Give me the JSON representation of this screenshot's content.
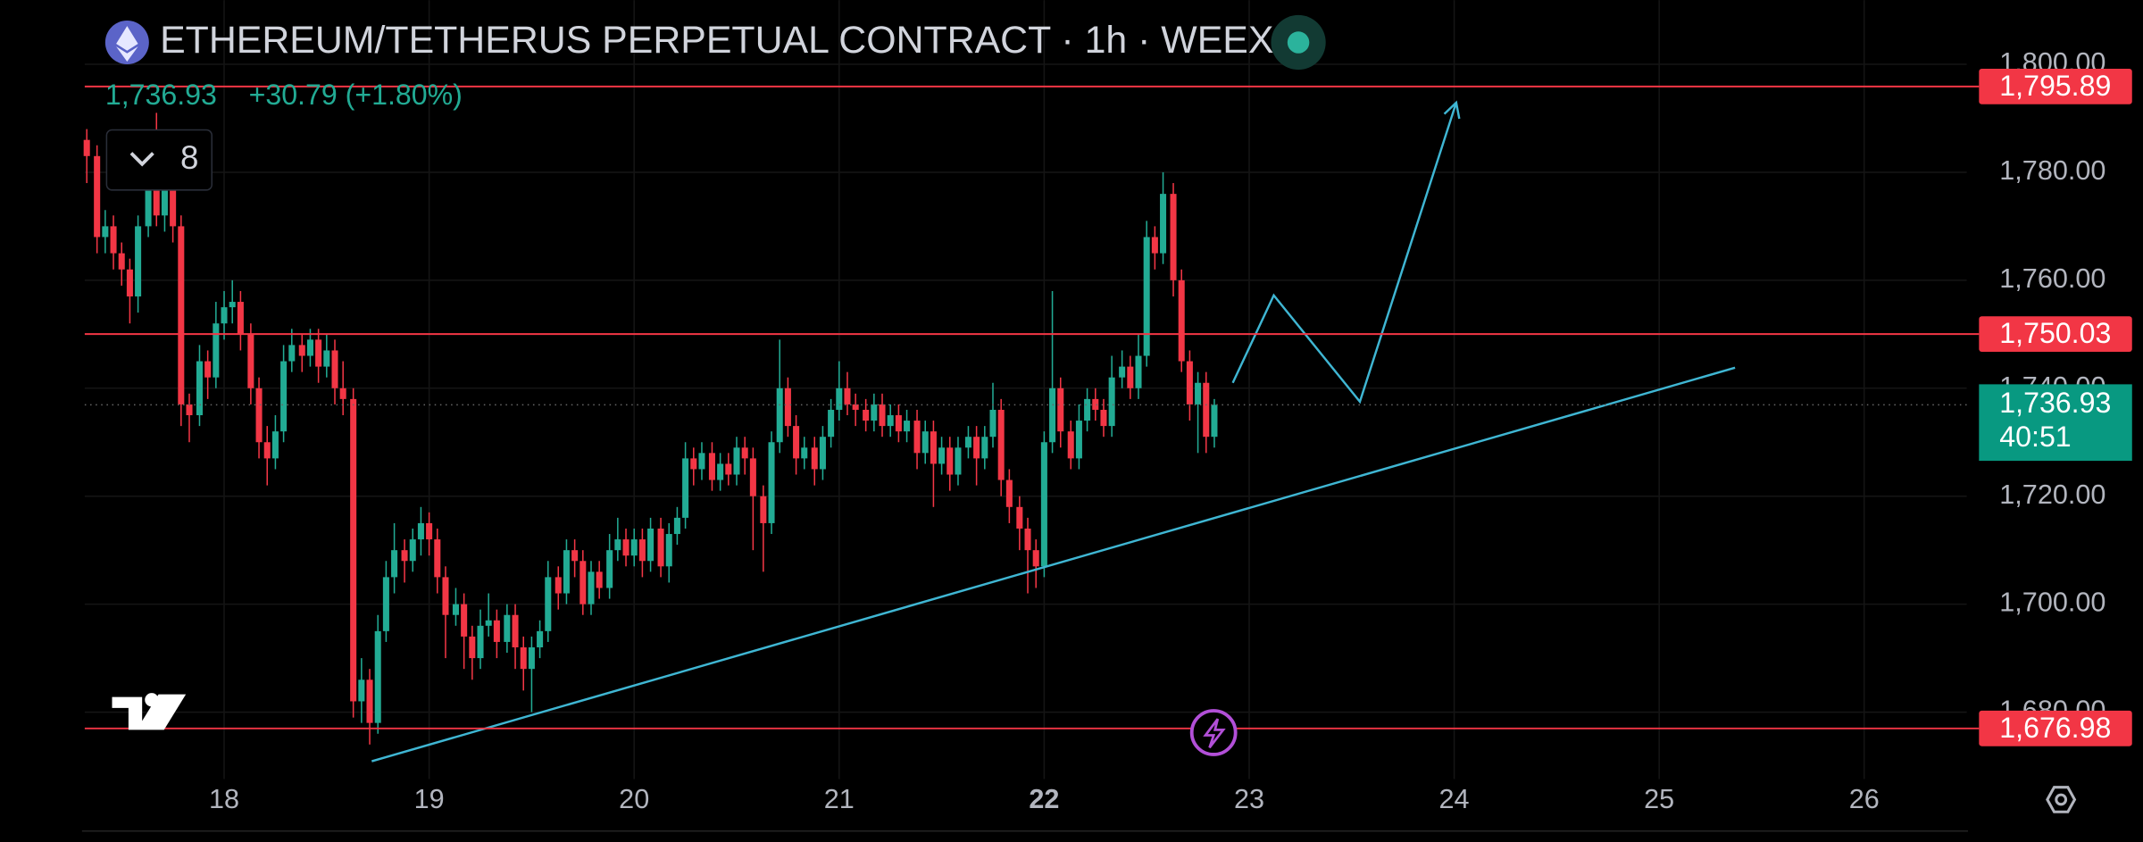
{
  "chart_data": {
    "type": "candlestick",
    "title": "ETHEREUM/TETHERUS PERPETUAL CONTRACT · 1h · WEEX",
    "price_text": "1,736.93",
    "change_text": "+30.79 (+1.80%)",
    "interval_menu": "8",
    "up_color": "#22ab94",
    "down_color": "#f23645",
    "grid": true,
    "xlim": [
      17.32,
      26.5
    ],
    "ylim": [
      1667.6,
      1811.9
    ],
    "xticks": [
      18,
      19,
      20,
      21,
      22,
      23,
      24,
      25,
      26
    ],
    "xtick_bold": 22,
    "yticks": [
      {
        "value": 1680,
        "label": "1,680.00"
      },
      {
        "value": 1700,
        "label": "1,700.00"
      },
      {
        "value": 1720,
        "label": "1,720.00"
      },
      {
        "value": 1740,
        "label": "1,740.00"
      },
      {
        "value": 1760,
        "label": "1,760.00"
      },
      {
        "value": 1780,
        "label": "1,780.00"
      },
      {
        "value": 1800,
        "label": "1,800.00"
      }
    ],
    "price_lines": [
      {
        "value": 1795.89,
        "label": "1,795.89",
        "color": "#f23645"
      },
      {
        "value": 1750.03,
        "label": "1,750.03",
        "color": "#f23645"
      },
      {
        "value": 1676.98,
        "label": "1,676.98",
        "color": "#f23645"
      }
    ],
    "current_price": {
      "value": 1736.93,
      "label": "1,736.93",
      "countdown": "40:51",
      "color": "#089981"
    },
    "drawings": [
      {
        "color": "#3fb6d3",
        "x": [
          18.72,
          25.37
        ],
        "y": [
          1670.9,
          1743.8
        ],
        "arrow": false
      },
      {
        "color": "#3fb6d3",
        "x": [
          22.92,
          23.12,
          23.54,
          24.01
        ],
        "y": [
          1741,
          1757.2,
          1737.5,
          1792.9
        ],
        "arrow": true
      }
    ],
    "candles": [
      [
        17.33,
        1786,
        1788,
        1778,
        1783
      ],
      [
        17.38,
        1783,
        1785,
        1765,
        1768
      ],
      [
        17.42,
        1768,
        1773,
        1765,
        1770
      ],
      [
        17.46,
        1770,
        1772,
        1762,
        1765
      ],
      [
        17.5,
        1765,
        1767,
        1759,
        1762
      ],
      [
        17.54,
        1762,
        1764,
        1752,
        1757
      ],
      [
        17.58,
        1757,
        1772,
        1754,
        1770
      ],
      [
        17.63,
        1770,
        1781,
        1768,
        1778
      ],
      [
        17.67,
        1778,
        1791,
        1770,
        1772
      ],
      [
        17.71,
        1772,
        1785,
        1769,
        1783
      ],
      [
        17.75,
        1783,
        1786,
        1767,
        1770
      ],
      [
        17.79,
        1770,
        1772,
        1733,
        1737
      ],
      [
        17.83,
        1737,
        1739,
        1730,
        1735
      ],
      [
        17.88,
        1735,
        1748,
        1733,
        1745
      ],
      [
        17.92,
        1745,
        1747,
        1738,
        1742
      ],
      [
        17.96,
        1742,
        1756,
        1740,
        1752
      ],
      [
        18.0,
        1752,
        1758,
        1749,
        1755
      ],
      [
        18.04,
        1755,
        1760,
        1752,
        1756
      ],
      [
        18.08,
        1756,
        1758,
        1747,
        1750
      ],
      [
        18.13,
        1750,
        1752,
        1737,
        1740
      ],
      [
        18.17,
        1740,
        1742,
        1727,
        1730
      ],
      [
        18.21,
        1730,
        1733,
        1722,
        1727
      ],
      [
        18.25,
        1727,
        1735,
        1725,
        1732
      ],
      [
        18.29,
        1732,
        1748,
        1730,
        1745
      ],
      [
        18.33,
        1745,
        1751,
        1743,
        1748
      ],
      [
        18.38,
        1748,
        1750,
        1743,
        1746
      ],
      [
        18.42,
        1746,
        1751,
        1744,
        1749
      ],
      [
        18.46,
        1749,
        1751,
        1741,
        1744
      ],
      [
        18.5,
        1744,
        1750,
        1742,
        1747
      ],
      [
        18.54,
        1747,
        1749,
        1737,
        1740
      ],
      [
        18.58,
        1740,
        1745,
        1735,
        1738
      ],
      [
        18.63,
        1738,
        1740,
        1679,
        1682
      ],
      [
        18.67,
        1682,
        1690,
        1678,
        1686
      ],
      [
        18.71,
        1686,
        1688,
        1674,
        1678
      ],
      [
        18.75,
        1678,
        1698,
        1676,
        1695
      ],
      [
        18.79,
        1695,
        1708,
        1693,
        1705
      ],
      [
        18.83,
        1705,
        1715,
        1702,
        1710
      ],
      [
        18.88,
        1710,
        1712,
        1704,
        1708
      ],
      [
        18.92,
        1708,
        1714,
        1706,
        1712
      ],
      [
        18.96,
        1712,
        1718,
        1709,
        1715
      ],
      [
        19.0,
        1715,
        1717,
        1709,
        1712
      ],
      [
        19.04,
        1712,
        1714,
        1702,
        1705
      ],
      [
        19.08,
        1705,
        1707,
        1690,
        1698
      ],
      [
        19.13,
        1698,
        1703,
        1696,
        1700
      ],
      [
        19.17,
        1700,
        1702,
        1688,
        1694
      ],
      [
        19.21,
        1694,
        1696,
        1686,
        1690
      ],
      [
        19.25,
        1690,
        1699,
        1688,
        1696
      ],
      [
        19.29,
        1696,
        1702,
        1694,
        1697
      ],
      [
        19.33,
        1697,
        1699,
        1690,
        1693
      ],
      [
        19.38,
        1693,
        1700,
        1691,
        1698
      ],
      [
        19.42,
        1698,
        1700,
        1688,
        1692
      ],
      [
        19.46,
        1692,
        1694,
        1684,
        1688
      ],
      [
        19.5,
        1688,
        1694,
        1680,
        1692
      ],
      [
        19.54,
        1692,
        1697,
        1690,
        1695
      ],
      [
        19.58,
        1695,
        1708,
        1693,
        1705
      ],
      [
        19.63,
        1705,
        1707,
        1699,
        1702
      ],
      [
        19.67,
        1702,
        1712,
        1700,
        1710
      ],
      [
        19.71,
        1710,
        1712,
        1705,
        1708
      ],
      [
        19.75,
        1708,
        1710,
        1698,
        1700
      ],
      [
        19.79,
        1700,
        1708,
        1698,
        1706
      ],
      [
        19.83,
        1706,
        1708,
        1701,
        1703
      ],
      [
        19.88,
        1703,
        1713,
        1701,
        1710
      ],
      [
        19.92,
        1710,
        1716,
        1708,
        1712
      ],
      [
        19.96,
        1712,
        1714,
        1707,
        1709
      ],
      [
        20.0,
        1709,
        1714,
        1707,
        1712
      ],
      [
        20.04,
        1712,
        1714,
        1705,
        1708
      ],
      [
        20.08,
        1708,
        1716,
        1706,
        1714
      ],
      [
        20.13,
        1714,
        1716,
        1705,
        1707
      ],
      [
        20.17,
        1707,
        1715,
        1704,
        1713
      ],
      [
        20.21,
        1713,
        1718,
        1711,
        1716
      ],
      [
        20.25,
        1716,
        1730,
        1714,
        1727
      ],
      [
        20.29,
        1727,
        1729,
        1722,
        1725
      ],
      [
        20.33,
        1725,
        1730,
        1723,
        1728
      ],
      [
        20.38,
        1728,
        1730,
        1721,
        1723
      ],
      [
        20.42,
        1723,
        1728,
        1721,
        1726
      ],
      [
        20.46,
        1726,
        1728,
        1722,
        1724
      ],
      [
        20.5,
        1724,
        1731,
        1722,
        1729
      ],
      [
        20.54,
        1729,
        1731,
        1724,
        1727
      ],
      [
        20.58,
        1727,
        1729,
        1710,
        1720
      ],
      [
        20.63,
        1720,
        1722,
        1706,
        1715
      ],
      [
        20.67,
        1715,
        1732,
        1713,
        1730
      ],
      [
        20.71,
        1730,
        1749,
        1728,
        1740
      ],
      [
        20.75,
        1740,
        1742,
        1731,
        1733
      ],
      [
        20.79,
        1733,
        1735,
        1724,
        1727
      ],
      [
        20.83,
        1727,
        1731,
        1725,
        1729
      ],
      [
        20.88,
        1729,
        1731,
        1722,
        1725
      ],
      [
        20.92,
        1725,
        1733,
        1723,
        1731
      ],
      [
        20.96,
        1731,
        1738,
        1729,
        1736
      ],
      [
        21.0,
        1736,
        1745,
        1734,
        1740
      ],
      [
        21.04,
        1740,
        1743,
        1735,
        1737
      ],
      [
        21.08,
        1737,
        1739,
        1733,
        1736
      ],
      [
        21.13,
        1736,
        1738,
        1732,
        1734
      ],
      [
        21.17,
        1734,
        1739,
        1732,
        1737
      ],
      [
        21.21,
        1737,
        1739,
        1731,
        1733
      ],
      [
        21.25,
        1733,
        1737,
        1731,
        1735
      ],
      [
        21.29,
        1735,
        1737,
        1730,
        1732
      ],
      [
        21.33,
        1732,
        1736,
        1730,
        1734
      ],
      [
        21.38,
        1734,
        1736,
        1725,
        1728
      ],
      [
        21.42,
        1728,
        1734,
        1726,
        1732
      ],
      [
        21.46,
        1732,
        1734,
        1718,
        1726
      ],
      [
        21.5,
        1726,
        1731,
        1724,
        1729
      ],
      [
        21.54,
        1729,
        1731,
        1721,
        1724
      ],
      [
        21.58,
        1724,
        1731,
        1722,
        1729
      ],
      [
        21.63,
        1729,
        1733,
        1727,
        1731
      ],
      [
        21.67,
        1731,
        1733,
        1722,
        1727
      ],
      [
        21.71,
        1727,
        1733,
        1725,
        1731
      ],
      [
        21.75,
        1731,
        1741,
        1729,
        1736
      ],
      [
        21.79,
        1736,
        1738,
        1720,
        1723
      ],
      [
        21.83,
        1723,
        1725,
        1715,
        1718
      ],
      [
        21.88,
        1718,
        1720,
        1710,
        1714
      ],
      [
        21.92,
        1714,
        1716,
        1702,
        1710
      ],
      [
        21.96,
        1710,
        1712,
        1703,
        1707
      ],
      [
        22.0,
        1707,
        1732,
        1705,
        1730
      ],
      [
        22.04,
        1730,
        1758,
        1728,
        1740
      ],
      [
        22.08,
        1740,
        1742,
        1729,
        1732
      ],
      [
        22.13,
        1732,
        1734,
        1725,
        1727
      ],
      [
        22.17,
        1727,
        1737,
        1725,
        1734
      ],
      [
        22.21,
        1734,
        1740,
        1732,
        1738
      ],
      [
        22.25,
        1738,
        1740,
        1734,
        1736
      ],
      [
        22.29,
        1736,
        1738,
        1731,
        1733
      ],
      [
        22.33,
        1733,
        1746,
        1731,
        1742
      ],
      [
        22.38,
        1742,
        1747,
        1740,
        1744
      ],
      [
        22.42,
        1744,
        1746,
        1738,
        1740
      ],
      [
        22.46,
        1740,
        1750,
        1738,
        1746
      ],
      [
        22.5,
        1746,
        1771,
        1744,
        1768
      ],
      [
        22.54,
        1768,
        1770,
        1762,
        1765
      ],
      [
        22.58,
        1765,
        1780,
        1763,
        1776
      ],
      [
        22.63,
        1776,
        1778,
        1757,
        1760
      ],
      [
        22.67,
        1760,
        1762,
        1743,
        1745
      ],
      [
        22.71,
        1745,
        1747,
        1734,
        1737
      ],
      [
        22.75,
        1737,
        1743,
        1728,
        1741
      ],
      [
        22.79,
        1741,
        1743,
        1728,
        1731
      ],
      [
        22.83,
        1731,
        1738,
        1729,
        1736.93
      ]
    ]
  }
}
